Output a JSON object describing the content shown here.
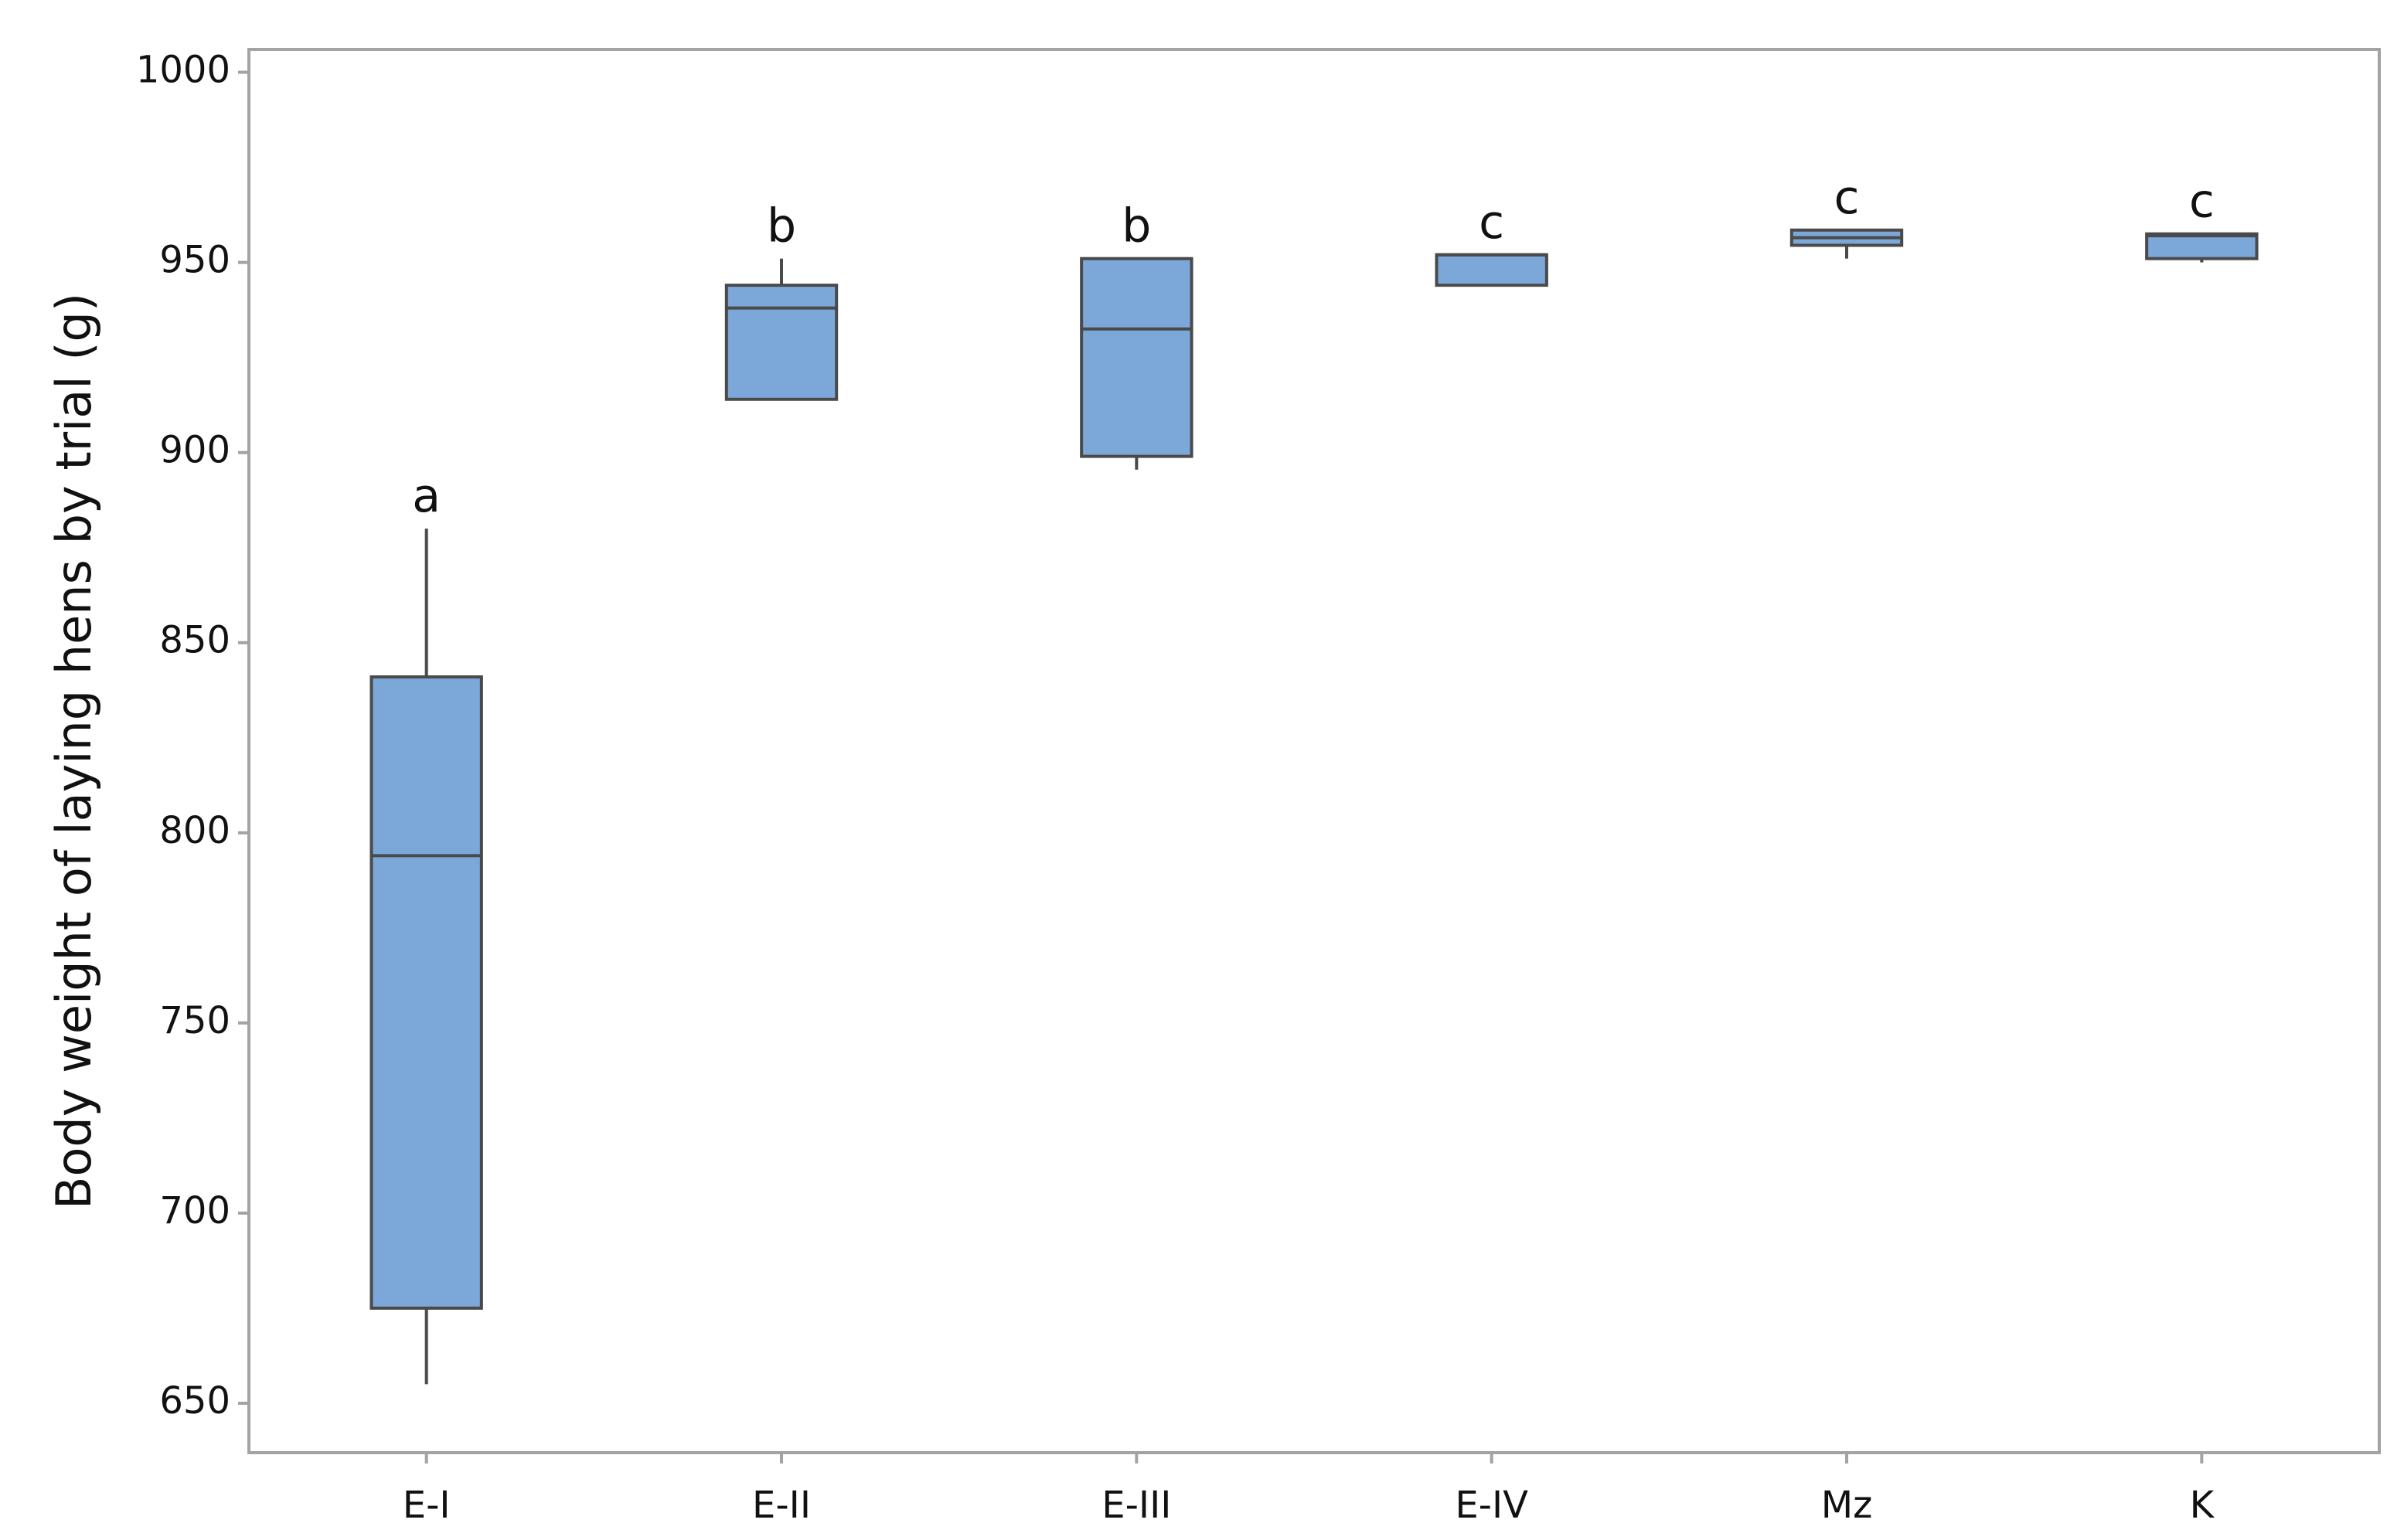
{
  "chart_data": {
    "type": "box",
    "y_label": "Body weight of laying hens by trial (g)",
    "categories": [
      "E-I",
      "E-II",
      "E-III",
      "E-IV",
      "Mz",
      "K"
    ],
    "min": [
      655,
      914,
      895.5,
      944,
      951,
      950
    ],
    "q1": [
      675,
      914,
      899,
      944,
      954.5,
      951
    ],
    "median": [
      794,
      938,
      932.5,
      952,
      956.5,
      957
    ],
    "q3": [
      841,
      944,
      951,
      952,
      958.5,
      957.5
    ],
    "max": [
      880,
      951,
      951,
      952,
      958.5,
      957.5
    ],
    "annotations": [
      "a",
      "b",
      "b",
      "c",
      "c",
      "c"
    ],
    "color": "#7ba7d9",
    "ylim": [
      637,
      1006
    ],
    "yticks": [
      650,
      700,
      750,
      800,
      850,
      900,
      950,
      1000
    ],
    "grid": false
  }
}
